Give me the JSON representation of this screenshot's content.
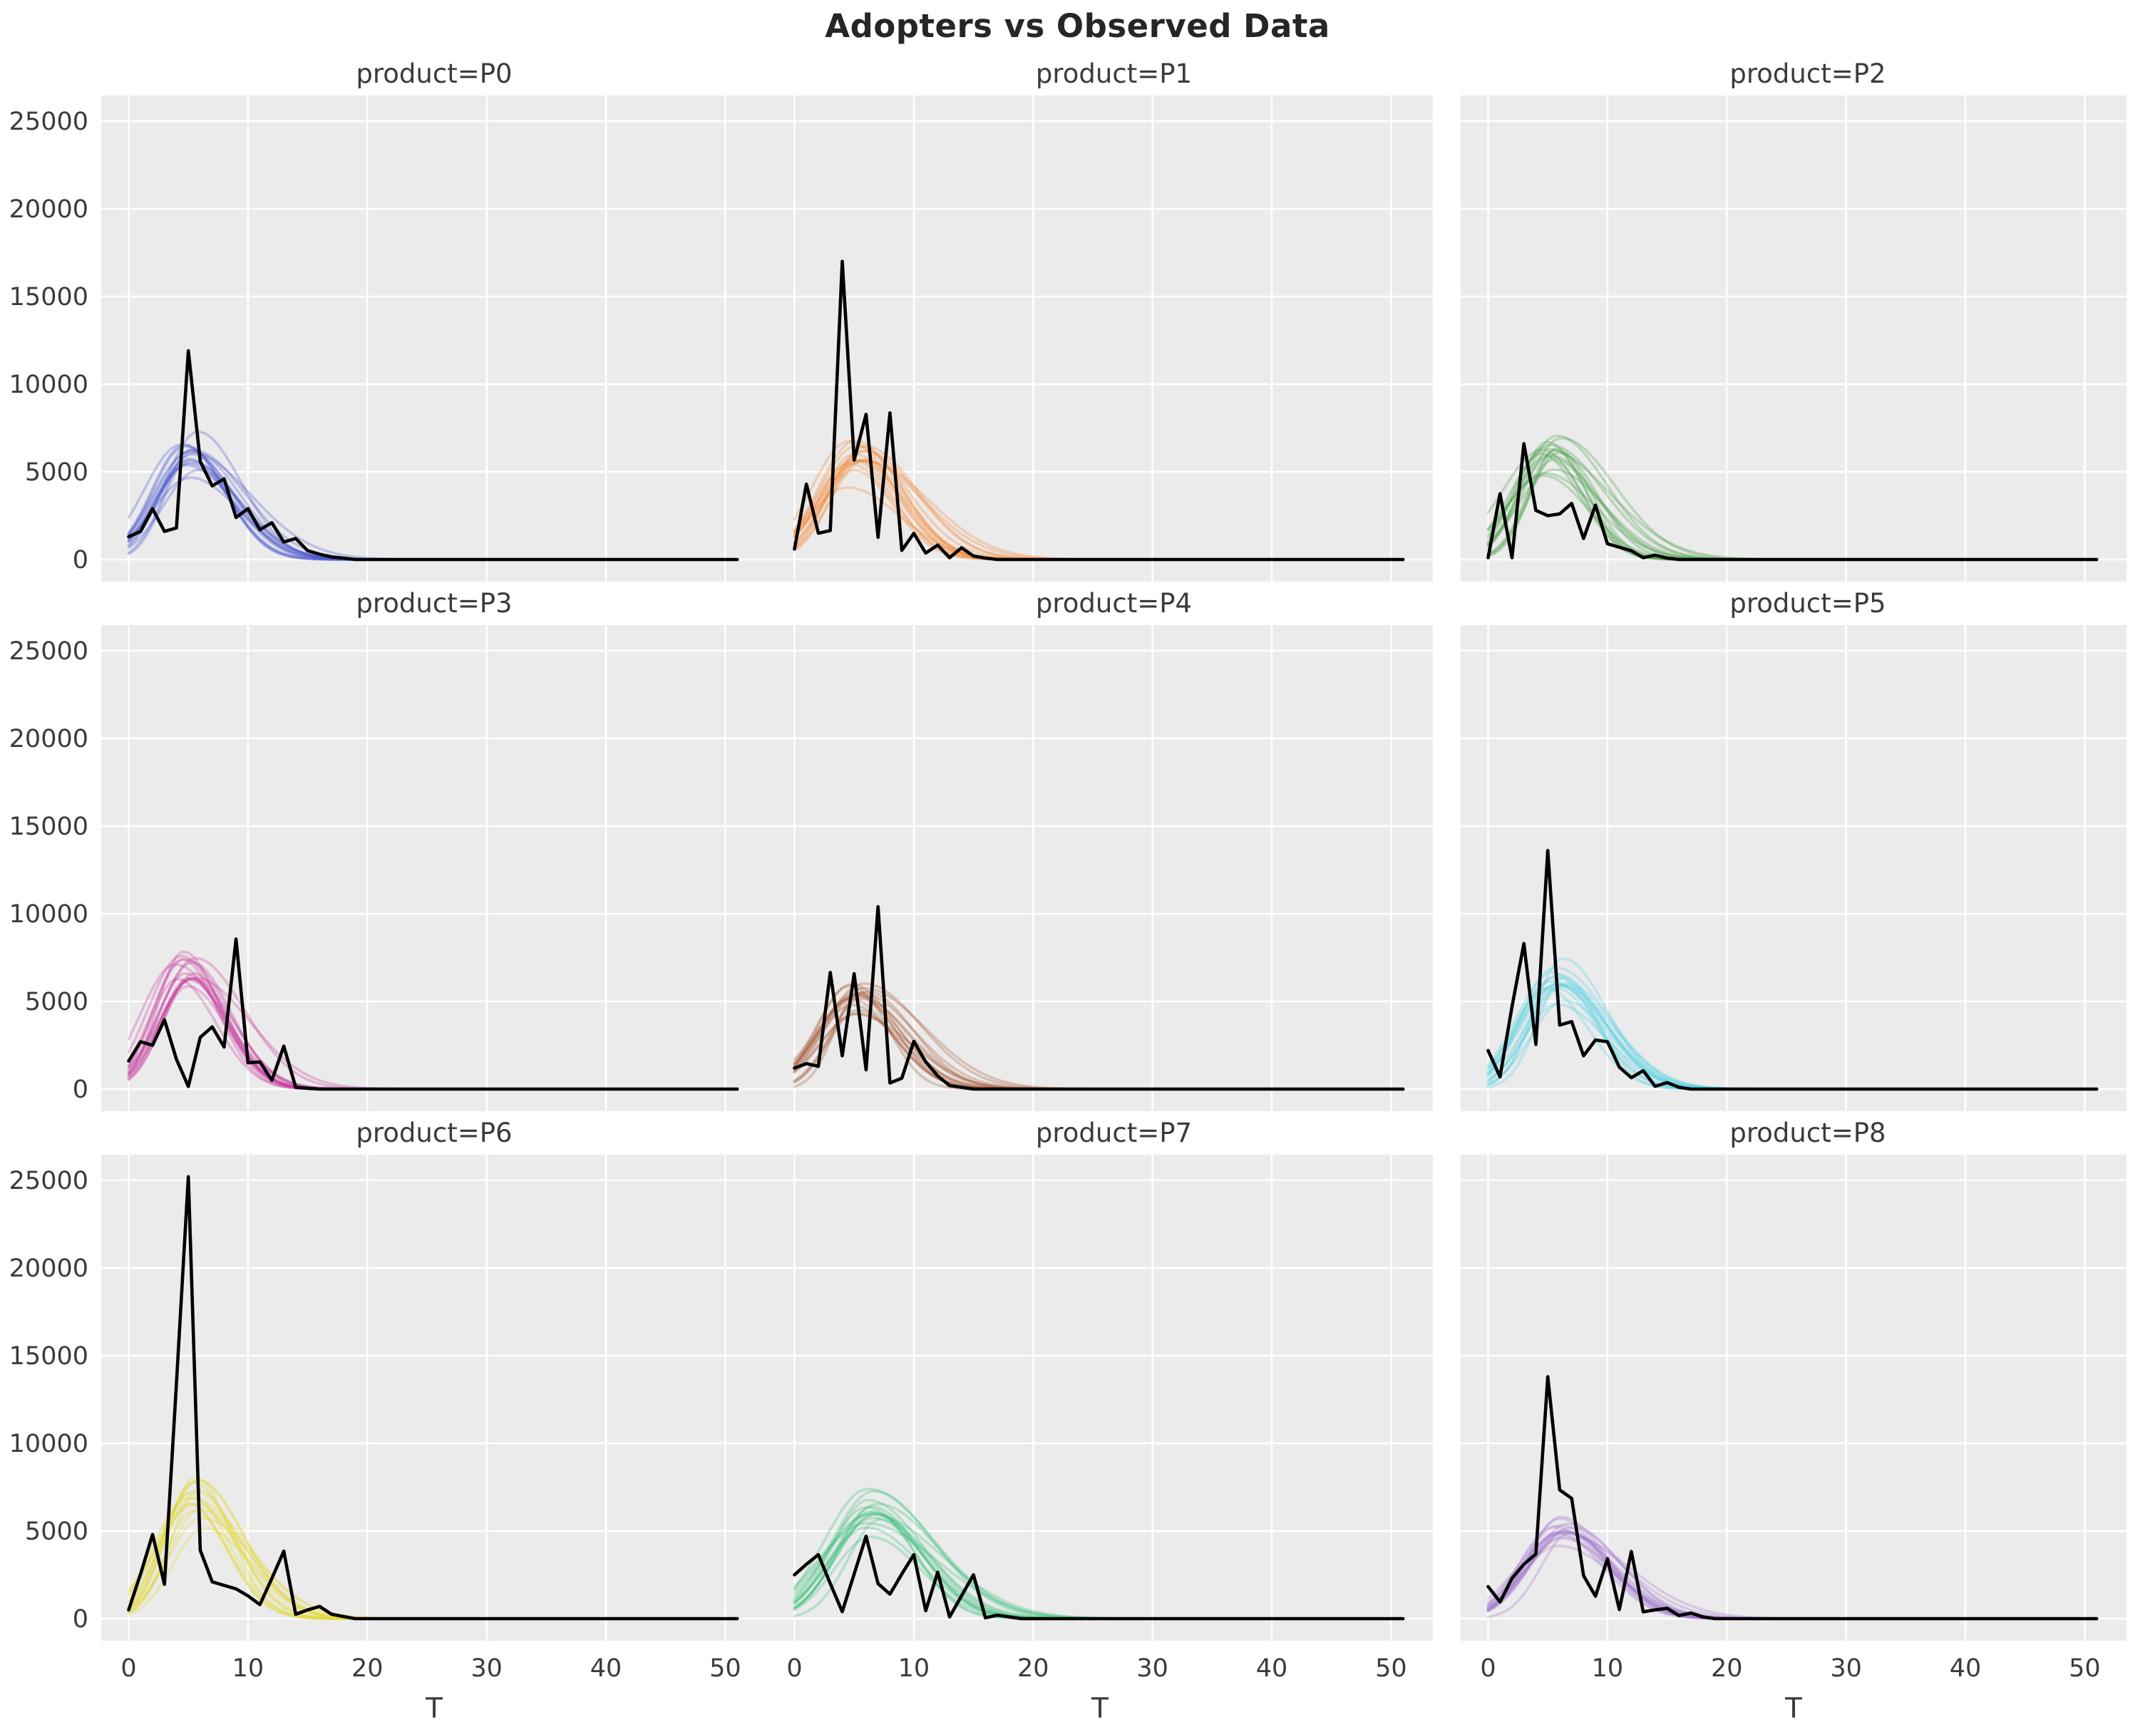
{
  "figure": {
    "title": "Adopters vs Observed Data",
    "background": "#ffffff"
  },
  "axes": {
    "xlabel": "T",
    "x_ticks": [
      0,
      10,
      20,
      30,
      40,
      50
    ],
    "y_ticks": [
      0,
      5000,
      10000,
      15000,
      20000,
      25000
    ],
    "x_range": [
      -2.3,
      53.5
    ],
    "y_range": [
      -1260,
      26460
    ],
    "panel_bg": "#ebebeb",
    "grid_color": "#ffffff",
    "tick_label_color": "#3b3b3b",
    "observed_color": "#000000"
  },
  "chart_data": {
    "type": "line",
    "title": "Adopters vs Observed Data",
    "xlabel": "T",
    "ylabel": "",
    "grid": true,
    "legend": false,
    "x_start": 0,
    "x_end": 51,
    "note": "observed arrays give adopters at T=0..19; values are 0 from T=20 through T=51. posterior describes the fan of smooth sampled adoption curves drawn behind the observed line.",
    "facets": [
      {
        "title": "product=P0",
        "color": "#4553cb",
        "observed": [
          1300,
          1600,
          2900,
          1600,
          1800,
          11900,
          5600,
          4200,
          4600,
          2400,
          2900,
          1700,
          2100,
          1000,
          1200,
          500,
          300,
          150,
          80,
          0
        ],
        "posterior": {
          "peak": 5900,
          "t_peak": 5.3,
          "sigma": 2.8,
          "n_samples": 16
        }
      },
      {
        "title": "product=P1",
        "color": "#f5822a",
        "observed": [
          600,
          4300,
          1500,
          1650,
          17000,
          5670,
          8280,
          1270,
          8360,
          520,
          1490,
          370,
          820,
          100,
          670,
          200,
          80,
          0,
          0,
          0
        ],
        "posterior": {
          "peak": 5600,
          "t_peak": 5.2,
          "sigma": 2.9,
          "n_samples": 16
        }
      },
      {
        "title": "product=P2",
        "color": "#3f9b3f",
        "observed": [
          100,
          3750,
          100,
          6600,
          2800,
          2500,
          2600,
          3200,
          1200,
          3100,
          900,
          700,
          500,
          100,
          250,
          80,
          0,
          0,
          0,
          0
        ],
        "posterior": {
          "peak": 5700,
          "t_peak": 5.0,
          "sigma": 2.7,
          "n_samples": 16
        }
      },
      {
        "title": "product=P3",
        "color": "#c72f9c",
        "observed": [
          1600,
          2700,
          2500,
          3950,
          1700,
          150,
          2950,
          3550,
          2400,
          8550,
          1500,
          1550,
          500,
          2450,
          100,
          50,
          0,
          0,
          0,
          0
        ],
        "posterior": {
          "peak": 6500,
          "t_peak": 4.8,
          "sigma": 2.6,
          "n_samples": 16
        }
      },
      {
        "title": "product=P4",
        "color": "#a0522d",
        "observed": [
          1200,
          1450,
          1300,
          6650,
          1900,
          6580,
          1100,
          10400,
          350,
          620,
          2725,
          1550,
          750,
          200,
          100,
          0,
          0,
          0,
          0,
          0
        ],
        "posterior": {
          "peak": 5400,
          "t_peak": 5.3,
          "sigma": 2.9,
          "n_samples": 16
        }
      },
      {
        "title": "product=P5",
        "color": "#4fd0e4",
        "observed": [
          2200,
          700,
          4700,
          8300,
          2550,
          13600,
          3650,
          3850,
          1900,
          2800,
          2700,
          1250,
          650,
          1050,
          160,
          370,
          100,
          0,
          0,
          0
        ],
        "posterior": {
          "peak": 6300,
          "t_peak": 5.6,
          "sigma": 2.8,
          "n_samples": 16
        }
      },
      {
        "title": "product=P6",
        "color": "#e2d62f",
        "observed": [
          500,
          2550,
          4800,
          1960,
          13400,
          25200,
          3900,
          2100,
          1900,
          1700,
          1300,
          800,
          2300,
          3850,
          250,
          500,
          700,
          250,
          120,
          0
        ],
        "posterior": {
          "peak": 7100,
          "t_peak": 5.6,
          "sigma": 2.7,
          "n_samples": 16
        }
      },
      {
        "title": "product=P7",
        "color": "#34bd77",
        "observed": [
          2500,
          3100,
          3650,
          2000,
          400,
          2550,
          4700,
          2000,
          1400,
          2550,
          3650,
          450,
          2650,
          100,
          1300,
          2500,
          50,
          200,
          100,
          0
        ],
        "posterior": {
          "peak": 5800,
          "t_peak": 6.4,
          "sigma": 3.2,
          "n_samples": 16
        }
      },
      {
        "title": "product=P8",
        "color": "#a173ce",
        "observed": [
          1830,
          960,
          2300,
          3100,
          3690,
          13800,
          7340,
          6860,
          2450,
          1280,
          3420,
          520,
          3830,
          390,
          500,
          590,
          180,
          320,
          100,
          0
        ],
        "posterior": {
          "peak": 5200,
          "t_peak": 6.2,
          "sigma": 3.0,
          "n_samples": 16
        }
      }
    ],
    "style": {
      "observed_line_width": 4.6,
      "posterior_line_width": 3.6,
      "posterior_alpha": 0.28
    }
  }
}
